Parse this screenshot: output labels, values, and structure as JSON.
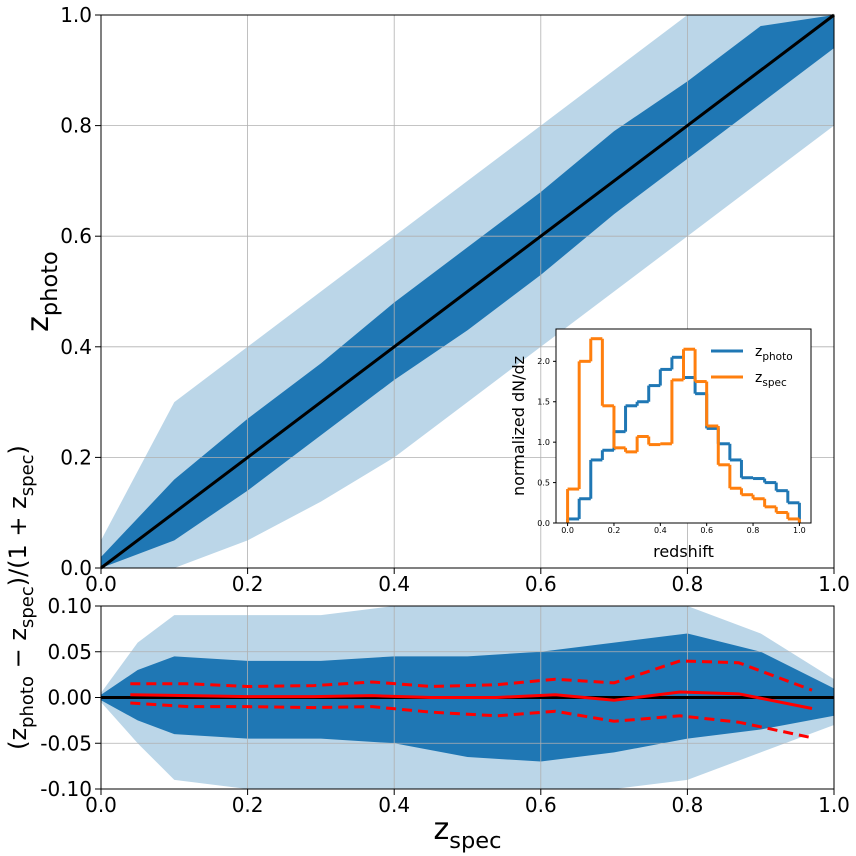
{
  "chart_data": [
    {
      "type": "line",
      "xlim": [
        0,
        1
      ],
      "ylim": [
        0,
        1
      ],
      "grid": true,
      "xticks": [
        {
          "value": 0,
          "label": "0.0"
        },
        {
          "value": 0.2,
          "label": "0.2"
        },
        {
          "value": 0.4,
          "label": "0.4"
        },
        {
          "value": 0.6,
          "label": "0.6"
        },
        {
          "value": 0.8,
          "label": "0.8"
        },
        {
          "value": 1,
          "label": "1.0"
        }
      ],
      "yticks": [
        {
          "value": 0,
          "label": "0.0"
        },
        {
          "value": 0.2,
          "label": "0.2"
        },
        {
          "value": 0.4,
          "label": "0.4"
        },
        {
          "value": 0.6,
          "label": "0.6"
        },
        {
          "value": 0.8,
          "label": "0.8"
        },
        {
          "value": 1,
          "label": "1.0"
        }
      ],
      "ylabel": [
        "z",
        "photo"
      ],
      "band_x": [
        0,
        0.1,
        0.2,
        0.3,
        0.4,
        0.5,
        0.6,
        0.7,
        0.8,
        0.9,
        1
      ],
      "bands": [
        {
          "color": "#1f77b4",
          "opacity": 0.3,
          "upper": [
            0.05,
            0.3,
            0.4,
            0.5,
            0.6,
            0.7,
            0.8,
            0.9,
            1,
            1,
            1
          ],
          "lower": [
            0,
            0,
            0.05,
            0.12,
            0.2,
            0.3,
            0.4,
            0.5,
            0.6,
            0.7,
            0.8
          ]
        },
        {
          "color": "#1f77b4",
          "opacity": 1,
          "upper": [
            0.02,
            0.16,
            0.27,
            0.37,
            0.48,
            0.58,
            0.68,
            0.79,
            0.88,
            0.98,
            1
          ],
          "lower": [
            0,
            0.05,
            0.14,
            0.24,
            0.34,
            0.43,
            0.53,
            0.64,
            0.74,
            0.84,
            0.94
          ]
        }
      ],
      "x": [
        0,
        1
      ],
      "series": [
        {
          "color": "#000000",
          "values": [
            0,
            1
          ]
        }
      ]
    },
    {
      "type": "line",
      "xlim": [
        0,
        1
      ],
      "ylim": [
        -0.1,
        0.1
      ],
      "grid": true,
      "xticks": [
        {
          "value": 0,
          "label": "0.0"
        },
        {
          "value": 0.2,
          "label": "0.2"
        },
        {
          "value": 0.4,
          "label": "0.4"
        },
        {
          "value": 0.6,
          "label": "0.6"
        },
        {
          "value": 0.8,
          "label": "0.8"
        },
        {
          "value": 1,
          "label": "1.0"
        }
      ],
      "yticks": [
        {
          "value": 0.1,
          "label": "0.10"
        },
        {
          "value": 0.05,
          "label": "0.05"
        },
        {
          "value": 0,
          "label": "0.00"
        },
        {
          "value": -0.05,
          "label": "-0.05"
        },
        {
          "value": -0.1,
          "label": "-0.10"
        }
      ],
      "xlabel": [
        "z",
        "spec"
      ],
      "ylabel": [
        "(z",
        "photo",
        " − z",
        "spec",
        ")/(1 + z",
        "spec",
        ")"
      ],
      "reference_line": 0,
      "band_x": [
        0,
        0.05,
        0.1,
        0.2,
        0.3,
        0.4,
        0.5,
        0.6,
        0.7,
        0.8,
        0.9,
        1
      ],
      "bands": [
        {
          "color": "#1f77b4",
          "opacity": 0.3,
          "upper": [
            0.005,
            0.06,
            0.09,
            0.09,
            0.09,
            0.1,
            0.1,
            0.1,
            0.1,
            0.1,
            0.07,
            0.02
          ],
          "lower": [
            -0.005,
            -0.05,
            -0.09,
            -0.1,
            -0.1,
            -0.1,
            -0.1,
            -0.1,
            -0.1,
            -0.09,
            -0.06,
            -0.03
          ]
        },
        {
          "color": "#1f77b4",
          "opacity": 1,
          "upper": [
            0.003,
            0.03,
            0.045,
            0.04,
            0.04,
            0.045,
            0.045,
            0.05,
            0.06,
            0.07,
            0.05,
            0.01
          ],
          "lower": [
            -0.003,
            -0.025,
            -0.04,
            -0.045,
            -0.045,
            -0.05,
            -0.065,
            -0.07,
            -0.06,
            -0.045,
            -0.035,
            -0.02
          ]
        }
      ],
      "x": [
        0.04,
        0.12,
        0.2,
        0.29,
        0.37,
        0.45,
        0.54,
        0.62,
        0.7,
        0.79,
        0.87,
        0.97
      ],
      "series": [
        {
          "color": "#ff0000",
          "values": [
            0.003,
            0.002,
            0.001,
            0.001,
            0.002,
            0,
            0,
            0.003,
            -0.003,
            0.006,
            0.004,
            -0.012
          ]
        },
        {
          "color": "#ff0000",
          "dashed": true,
          "values": [
            0.015,
            0.015,
            0.012,
            0.013,
            0.017,
            0.012,
            0.014,
            0.02,
            0.016,
            0.04,
            0.038,
            0.008
          ]
        },
        {
          "color": "#ff0000",
          "dashed": true,
          "values": [
            -0.006,
            -0.01,
            -0.01,
            -0.011,
            -0.01,
            -0.016,
            -0.02,
            -0.015,
            -0.026,
            -0.02,
            -0.027,
            -0.044
          ]
        }
      ]
    },
    {
      "type": "histogram",
      "xlim": [
        -0.05,
        1.05
      ],
      "ylim": [
        0,
        2.4
      ],
      "grid": false,
      "xticks": [
        {
          "value": 0,
          "label": "0.0"
        },
        {
          "value": 0.2,
          "label": "0.2"
        },
        {
          "value": 0.4,
          "label": "0.4"
        },
        {
          "value": 0.6,
          "label": "0.6"
        },
        {
          "value": 0.8,
          "label": "0.8"
        },
        {
          "value": 1,
          "label": "1.0"
        }
      ],
      "yticks": [
        {
          "value": 0,
          "label": "0.0"
        },
        {
          "value": 0.5,
          "label": "0.5"
        },
        {
          "value": 1,
          "label": "1.0"
        },
        {
          "value": 1.5,
          "label": "1.5"
        },
        {
          "value": 2,
          "label": "2.0"
        }
      ],
      "xlabel": [
        "redshift"
      ],
      "ylabel": [
        "normalized dN/dz"
      ],
      "legend": "upper right",
      "bins": [
        0,
        0.05,
        0.1,
        0.15,
        0.2,
        0.25,
        0.3,
        0.35,
        0.4,
        0.45,
        0.5,
        0.55,
        0.6,
        0.65,
        0.7,
        0.75,
        0.8,
        0.85,
        0.9,
        0.95,
        1
      ],
      "series": [
        {
          "name": [
            "z",
            "photo"
          ],
          "color": "#1f77b4",
          "values": [
            0.05,
            0.3,
            0.78,
            0.9,
            1.13,
            1.45,
            1.5,
            1.7,
            1.9,
            2.05,
            1.8,
            1.6,
            1.17,
            0.98,
            0.78,
            0.56,
            0.55,
            0.5,
            0.4,
            0.25
          ]
        },
        {
          "name": [
            "z",
            "spec"
          ],
          "color": "#ff7f0e",
          "values": [
            0.42,
            2,
            2.28,
            1.45,
            0.93,
            0.88,
            1.07,
            0.97,
            0.98,
            1.77,
            2.15,
            1.75,
            1.2,
            0.72,
            0.43,
            0.35,
            0.3,
            0.2,
            0.13,
            0.05
          ]
        }
      ]
    }
  ]
}
